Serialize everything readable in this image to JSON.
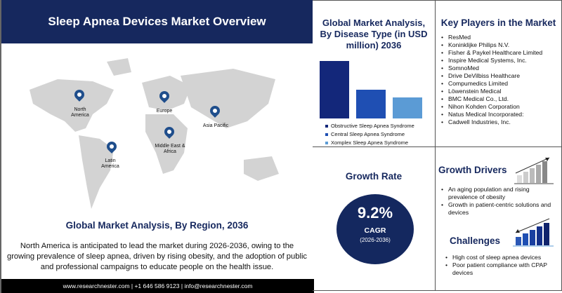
{
  "header": {
    "title": "Sleep Apnea Devices Market Overview"
  },
  "map": {
    "regions": [
      "North America",
      "Europe",
      "Asia Pacific",
      "Middle East & Africa",
      "Latin America"
    ]
  },
  "region": {
    "title": "Global Market Analysis, By Region, 2036",
    "text": "North America is anticipated to lead the market during 2026-2036, owing to the growing prevalence of sleep apnea, driven by rising obesity, and the adoption of public and professional campaigns to educate people on the health issue."
  },
  "footer": {
    "text": "www.researchnester.com | +1 646 586 9123 | info@researchnester.com"
  },
  "chart_data": {
    "type": "bar",
    "title": "Global Market Analysis, By Disease Type (in USD million) 2036",
    "categories": [
      "Obstructive Sleep Apnea Syndrome",
      "Central Sleep Apnea Syndrome",
      "Xomplex Sleep Apnea Syndrome"
    ],
    "values": [
      82,
      41,
      30
    ],
    "colors": [
      "#13277a",
      "#1f4fb3",
      "#5b9bd5"
    ],
    "grid": false,
    "legend": "bottom"
  },
  "key_players": {
    "title": "Key Players in the Market",
    "items": [
      "ResMed",
      "Koninklijke Philips N.V.",
      "Fisher & Paykel Healthcare Limited",
      "Inspire Medical Systems, Inc.",
      "SomnoMed",
      "Drive DeVilbiss Healthcare",
      "Compumedics Limited",
      "Löwenstein Medical",
      "BMC Medical Co., Ltd.",
      "Nihon Kohden Corporation",
      "Natus Medical Incorporated:",
      "Cadwell Industries, Inc."
    ]
  },
  "growth": {
    "title": "Growth Rate",
    "value": "9.2%",
    "label": "CAGR",
    "period": "(2026-2036)"
  },
  "drivers": {
    "title": "Growth Drivers",
    "items": [
      "An aging population and rising prevalence of obesity",
      "Growth in patient-centric solutions and devices"
    ]
  },
  "challenges": {
    "title": "Challenges",
    "items": [
      "High cost of sleep apnea devices",
      "Poor patient compliance with CPAP devices"
    ]
  }
}
